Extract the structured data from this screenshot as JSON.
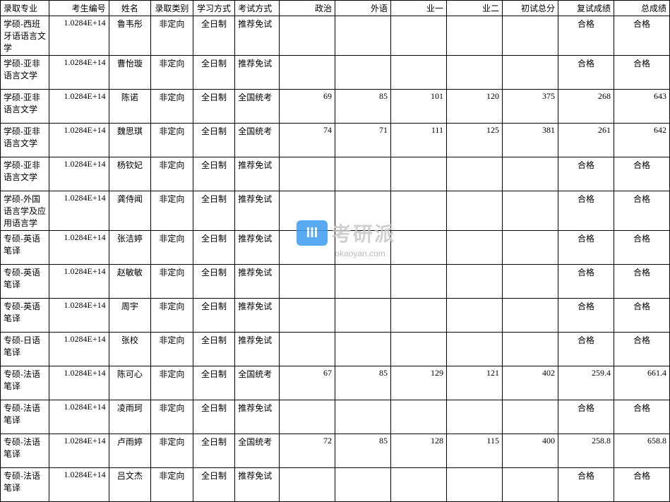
{
  "table": {
    "border_color": "#000000",
    "background_color": "#ffffff",
    "font_size": 12,
    "columns": [
      {
        "key": "major",
        "label": "录取专业",
        "class": "col-major"
      },
      {
        "key": "id",
        "label": "考生编号",
        "class": "col-id"
      },
      {
        "key": "name",
        "label": "姓名",
        "class": "col-name"
      },
      {
        "key": "type",
        "label": "录取类别",
        "class": "col-type"
      },
      {
        "key": "mode",
        "label": "学习方式",
        "class": "col-mode"
      },
      {
        "key": "exam",
        "label": "考试方式",
        "class": "col-exam"
      },
      {
        "key": "pol",
        "label": "政治",
        "class": "col-num"
      },
      {
        "key": "fl",
        "label": "外语",
        "class": "col-num"
      },
      {
        "key": "y1",
        "label": "业一",
        "class": "col-num"
      },
      {
        "key": "y2",
        "label": "业二",
        "class": "col-num"
      },
      {
        "key": "cs",
        "label": "初试总分",
        "class": "col-num"
      },
      {
        "key": "fs",
        "label": "复试成绩",
        "class": "col-fs"
      },
      {
        "key": "zs",
        "label": "总成绩",
        "class": "col-zs"
      }
    ],
    "rows": [
      {
        "major": "学硕-西班牙语语言文学",
        "id": "1.0284E+14",
        "name": "鲁韦彤",
        "type": "非定向",
        "mode": "全日制",
        "exam": "推荐免试",
        "pol": "",
        "fl": "",
        "y1": "",
        "y2": "",
        "cs": "",
        "fs": "合格",
        "zs": "合格"
      },
      {
        "major": "学硕-亚非语言文学",
        "id": "1.0284E+14",
        "name": "曹怡璇",
        "type": "非定向",
        "mode": "全日制",
        "exam": "推荐免试",
        "pol": "",
        "fl": "",
        "y1": "",
        "y2": "",
        "cs": "",
        "fs": "合格",
        "zs": "合格"
      },
      {
        "major": "学硕-亚非语言文学",
        "id": "1.0284E+14",
        "name": "陈诺",
        "type": "非定向",
        "mode": "全日制",
        "exam": "全国统考",
        "pol": "69",
        "fl": "85",
        "y1": "101",
        "y2": "120",
        "cs": "375",
        "fs": "268",
        "zs": "643"
      },
      {
        "major": "学硕-亚非语言文学",
        "id": "1.0284E+14",
        "name": "魏思琪",
        "type": "非定向",
        "mode": "全日制",
        "exam": "全国统考",
        "pol": "74",
        "fl": "71",
        "y1": "111",
        "y2": "125",
        "cs": "381",
        "fs": "261",
        "zs": "642"
      },
      {
        "major": "学硕-亚非语言文学",
        "id": "1.0284E+14",
        "name": "杨钦妃",
        "type": "非定向",
        "mode": "全日制",
        "exam": "推荐免试",
        "pol": "",
        "fl": "",
        "y1": "",
        "y2": "",
        "cs": "",
        "fs": "合格",
        "zs": "合格"
      },
      {
        "major": "学硕-外国语言学及应用语言学",
        "id": "1.0284E+14",
        "name": "龚侍闻",
        "type": "非定向",
        "mode": "全日制",
        "exam": "推荐免试",
        "pol": "",
        "fl": "",
        "y1": "",
        "y2": "",
        "cs": "",
        "fs": "合格",
        "zs": "合格"
      },
      {
        "major": "专硕-英语笔译",
        "id": "1.0284E+14",
        "name": "张洁婷",
        "type": "非定向",
        "mode": "全日制",
        "exam": "推荐免试",
        "pol": "",
        "fl": "",
        "y1": "",
        "y2": "",
        "cs": "",
        "fs": "合格",
        "zs": "合格"
      },
      {
        "major": "专硕-英语笔译",
        "id": "1.0284E+14",
        "name": "赵敏敏",
        "type": "非定向",
        "mode": "全日制",
        "exam": "推荐免试",
        "pol": "",
        "fl": "",
        "y1": "",
        "y2": "",
        "cs": "",
        "fs": "合格",
        "zs": "合格"
      },
      {
        "major": "专硕-英语笔译",
        "id": "1.0284E+14",
        "name": "周宇",
        "type": "非定向",
        "mode": "全日制",
        "exam": "推荐免试",
        "pol": "",
        "fl": "",
        "y1": "",
        "y2": "",
        "cs": "",
        "fs": "合格",
        "zs": "合格"
      },
      {
        "major": "专硕-日语笔译",
        "id": "1.0284E+14",
        "name": "张校",
        "type": "非定向",
        "mode": "全日制",
        "exam": "推荐免试",
        "pol": "",
        "fl": "",
        "y1": "",
        "y2": "",
        "cs": "",
        "fs": "合格",
        "zs": "合格"
      },
      {
        "major": "专硕-法语笔译",
        "id": "1.0284E+14",
        "name": "陈可心",
        "type": "非定向",
        "mode": "全日制",
        "exam": "全国统考",
        "pol": "67",
        "fl": "85",
        "y1": "129",
        "y2": "121",
        "cs": "402",
        "fs": "259.4",
        "zs": "661.4"
      },
      {
        "major": "专硕-法语笔译",
        "id": "1.0284E+14",
        "name": "凌雨珂",
        "type": "非定向",
        "mode": "全日制",
        "exam": "推荐免试",
        "pol": "",
        "fl": "",
        "y1": "",
        "y2": "",
        "cs": "",
        "fs": "合格",
        "zs": "合格"
      },
      {
        "major": "专硕-法语笔译",
        "id": "1.0284E+14",
        "name": "卢雨婷",
        "type": "非定向",
        "mode": "全日制",
        "exam": "全国统考",
        "pol": "72",
        "fl": "85",
        "y1": "128",
        "y2": "115",
        "cs": "400",
        "fs": "258.8",
        "zs": "658.8"
      },
      {
        "major": "专硕-法语笔译",
        "id": "1.0284E+14",
        "name": "吕文杰",
        "type": "非定向",
        "mode": "全日制",
        "exam": "推荐免试",
        "pol": "",
        "fl": "",
        "y1": "",
        "y2": "",
        "cs": "",
        "fs": "合格",
        "zs": "合格"
      }
    ]
  },
  "watermark": {
    "badge_bg": "#3b9cf0",
    "badge_text": "III",
    "text": "考研派",
    "text_color": "#c8c8c8",
    "url": "okaoyan.com",
    "url_color": "#b0b0b0"
  }
}
